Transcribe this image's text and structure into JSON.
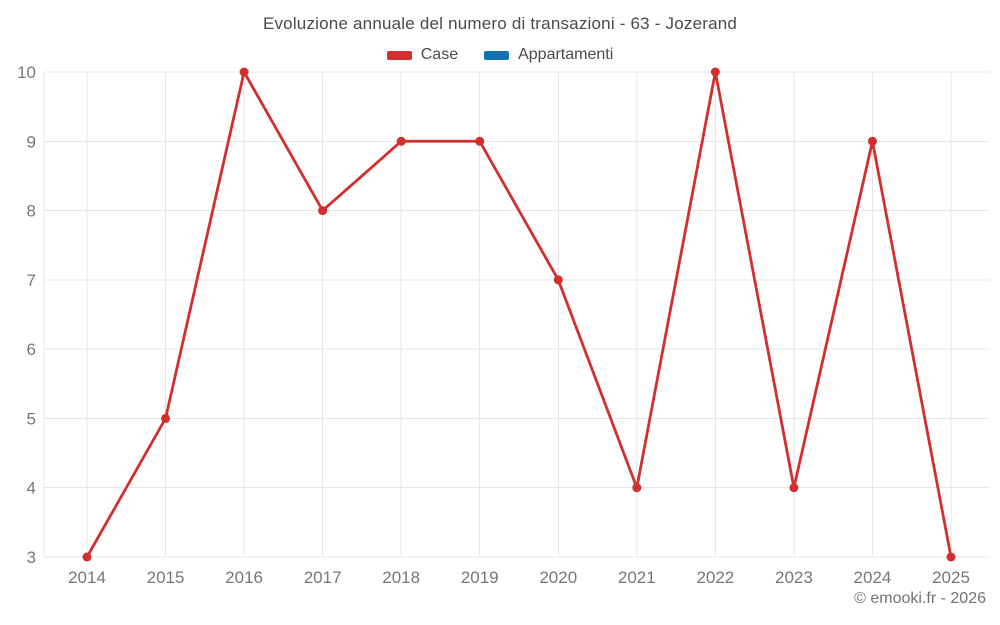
{
  "chart_data": {
    "type": "line",
    "title": "Evoluzione annuale del numero di transazioni - 63 - Jozerand",
    "categories": [
      "2014",
      "2015",
      "2016",
      "2017",
      "2018",
      "2019",
      "2020",
      "2021",
      "2022",
      "2023",
      "2024",
      "2025"
    ],
    "series": [
      {
        "name": "Case",
        "color": "#d32f2f",
        "values": [
          3,
          5,
          10,
          8,
          9,
          9,
          7,
          4,
          10,
          4,
          9,
          3
        ]
      },
      {
        "name": "Appartamenti",
        "color": "#1273ae",
        "values": []
      }
    ],
    "xlabel": "",
    "ylabel": "",
    "ylim": [
      3,
      10
    ],
    "y_ticks": [
      3,
      4,
      5,
      6,
      7,
      8,
      9,
      10
    ],
    "grid": true,
    "legend_position": "top"
  },
  "footer": {
    "watermark": "© emooki.fr - 2026"
  },
  "colors": {
    "grid": "#e7e7e7",
    "tick_label": "#757779",
    "title": "#474b4f"
  }
}
